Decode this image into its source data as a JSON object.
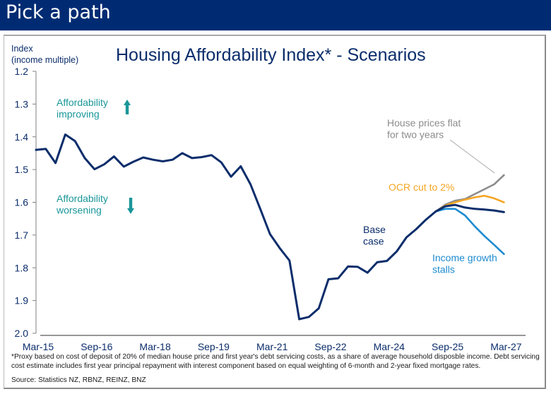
{
  "header": {
    "title": "Pick a path"
  },
  "chart_data": {
    "type": "line",
    "title": "Housing Affordability Index* - Scenarios",
    "ylabel": "Index\n(income multiple)",
    "ylabel_lines": [
      "Index",
      "(income multiple)"
    ],
    "xlabel": "",
    "y_inverted": true,
    "ylim": [
      1.2,
      2.0
    ],
    "yticks": [
      "1.2",
      "1.3",
      "1.4",
      "1.5",
      "1.6",
      "1.7",
      "1.8",
      "1.9",
      "2.0"
    ],
    "ytick_values": [
      1.2,
      1.3,
      1.4,
      1.5,
      1.6,
      1.7,
      1.8,
      1.9,
      2.0
    ],
    "xticks": [
      "Mar-15",
      "Sep-16",
      "Mar-18",
      "Sep-19",
      "Mar-21",
      "Sep-22",
      "Mar-24",
      "Sep-25",
      "Mar-27"
    ],
    "x_frequency": "quarterly",
    "x_start": "Mar-15",
    "grid": false,
    "series": [
      {
        "name": "Base case",
        "color": "#0B2D6B",
        "start_index": 0,
        "values": [
          1.44,
          1.437,
          1.48,
          1.393,
          1.413,
          1.465,
          1.499,
          1.484,
          1.46,
          1.491,
          1.476,
          1.463,
          1.47,
          1.475,
          1.47,
          1.45,
          1.465,
          1.462,
          1.456,
          1.478,
          1.522,
          1.49,
          1.545,
          1.62,
          1.697,
          1.74,
          1.778,
          1.957,
          1.95,
          1.924,
          1.835,
          1.832,
          1.796,
          1.797,
          1.815,
          1.783,
          1.779,
          1.75,
          1.707,
          1.682,
          1.653,
          1.628,
          1.612,
          1.608,
          1.616,
          1.62,
          1.622,
          1.625,
          1.63
        ]
      },
      {
        "name": "House prices flat for two years",
        "color": "#8C8C8C",
        "start_index": 41,
        "values": [
          1.628,
          1.607,
          1.595,
          1.59,
          1.575,
          1.56,
          1.545,
          1.517
        ]
      },
      {
        "name": "OCR cut to 2%",
        "color": "#F5A623",
        "start_index": 41,
        "values": [
          1.628,
          1.61,
          1.6,
          1.592,
          1.585,
          1.58,
          1.588,
          1.6
        ]
      },
      {
        "name": "Income growth stalls",
        "color": "#1D8BD1",
        "start_index": 41,
        "values": [
          1.628,
          1.62,
          1.62,
          1.64,
          1.673,
          1.703,
          1.73,
          1.758
        ]
      }
    ],
    "annotations": [
      {
        "id": "improving",
        "lines": [
          "Affordability",
          "improving"
        ],
        "arrow": "up",
        "color": "#1A9699"
      },
      {
        "id": "worsening",
        "lines": [
          "Affordability",
          "worsening"
        ],
        "arrow": "down",
        "color": "#1A9699"
      },
      {
        "id": "base",
        "lines": [
          "Base",
          "case"
        ],
        "color": "#0B2D6B"
      },
      {
        "id": "flat",
        "lines": [
          "House prices flat",
          "for two years"
        ],
        "color": "#8C8C8C"
      },
      {
        "id": "ocr",
        "lines": [
          "OCR cut to 2%"
        ],
        "color": "#F5A623"
      },
      {
        "id": "income",
        "lines": [
          "Income growth",
          "stalls"
        ],
        "color": "#1D8BD1"
      }
    ]
  },
  "footnote": "*Proxy based on cost of deposit of 20% of median house price and first year's debt servicing costs, as a share of average household disposble income. Debt servicing cost estimate includes first year principal repayment with interest component based on equal weighting of 6-month and 2-year fixed mortgage rates.",
  "source": "Source: Statistics NZ, RBNZ, REINZ, BNZ"
}
